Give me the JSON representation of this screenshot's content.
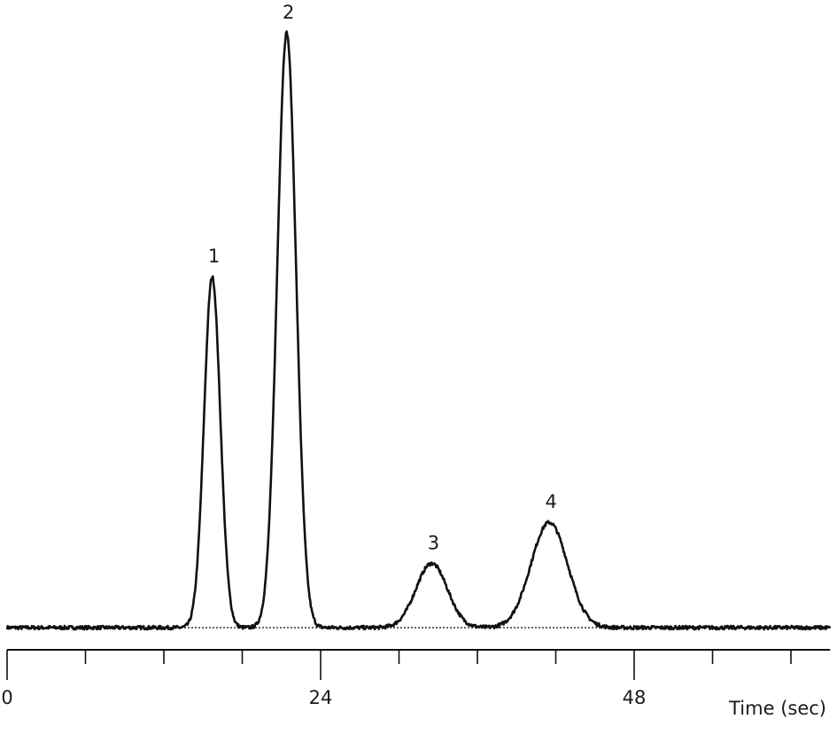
{
  "chart_data": {
    "type": "line",
    "title": "",
    "xlabel": "Time (sec)",
    "ylabel": "",
    "xlim": [
      0,
      63
    ],
    "ylim": [
      0,
      1
    ],
    "grid": false,
    "legend": "none",
    "x_ticks": [
      0,
      24,
      48
    ],
    "tick_labels": [
      "0",
      "24",
      "48"
    ],
    "minor_tick_interval": 6,
    "line_color": "#111111",
    "baseline": {
      "y": 0,
      "style": "dotted"
    },
    "peaks": [
      {
        "label": "1",
        "time": 15.7,
        "height": 0.59,
        "sigma": 0.62
      },
      {
        "label": "2",
        "time": 21.4,
        "height": 1.0,
        "sigma": 0.72
      },
      {
        "label": "3",
        "time": 32.5,
        "height": 0.108,
        "sigma": 1.2
      },
      {
        "label": "4",
        "time": 41.5,
        "height": 0.177,
        "sigma": 1.4
      }
    ]
  }
}
